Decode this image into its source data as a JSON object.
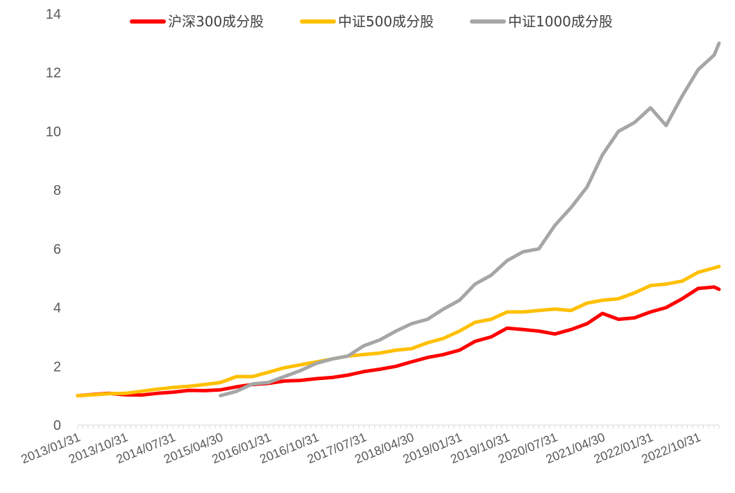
{
  "chart_data": {
    "type": "line",
    "xlabel": "",
    "ylabel": "",
    "ylim": [
      0,
      14
    ],
    "yticks": [
      "0",
      "2",
      "4",
      "6",
      "8",
      "10",
      "12",
      "14"
    ],
    "xtick_labels": [
      "2013/01/31",
      "2013/10/31",
      "2014/07/31",
      "2015/04/30",
      "2016/01/31",
      "2016/10/31",
      "2017/07/31",
      "2018/04/30",
      "2019/01/31",
      "2019/10/31",
      "2020/07/31",
      "2021/04/30",
      "2022/01/31",
      "2022/10/31"
    ],
    "x_start": "2013/01/31",
    "x_end": "2023/02/28",
    "grid": false,
    "legend_position": "top",
    "series": [
      {
        "name": "沪深300成分股",
        "color": "#ff0000",
        "points": [
          [
            "2013/01/31",
            1.0
          ],
          [
            "2013/04/30",
            1.04
          ],
          [
            "2013/07/31",
            1.08
          ],
          [
            "2013/10/31",
            1.03
          ],
          [
            "2014/01/31",
            1.02
          ],
          [
            "2014/04/30",
            1.08
          ],
          [
            "2014/07/31",
            1.12
          ],
          [
            "2014/10/31",
            1.18
          ],
          [
            "2015/01/31",
            1.17
          ],
          [
            "2015/04/30",
            1.2
          ],
          [
            "2015/07/31",
            1.3
          ],
          [
            "2015/10/31",
            1.38
          ],
          [
            "2016/01/31",
            1.42
          ],
          [
            "2016/04/30",
            1.5
          ],
          [
            "2016/07/31",
            1.52
          ],
          [
            "2016/10/31",
            1.58
          ],
          [
            "2017/01/31",
            1.62
          ],
          [
            "2017/04/30",
            1.7
          ],
          [
            "2017/07/31",
            1.82
          ],
          [
            "2017/10/31",
            1.9
          ],
          [
            "2018/01/31",
            2.0
          ],
          [
            "2018/04/30",
            2.15
          ],
          [
            "2018/07/31",
            2.3
          ],
          [
            "2018/10/31",
            2.4
          ],
          [
            "2019/01/31",
            2.55
          ],
          [
            "2019/04/30",
            2.85
          ],
          [
            "2019/07/31",
            3.0
          ],
          [
            "2019/10/31",
            3.3
          ],
          [
            "2020/01/31",
            3.25
          ],
          [
            "2020/04/30",
            3.2
          ],
          [
            "2020/07/31",
            3.1
          ],
          [
            "2020/10/31",
            3.25
          ],
          [
            "2021/01/31",
            3.45
          ],
          [
            "2021/04/30",
            3.8
          ],
          [
            "2021/07/31",
            3.6
          ],
          [
            "2021/10/31",
            3.65
          ],
          [
            "2022/01/31",
            3.85
          ],
          [
            "2022/04/30",
            4.0
          ],
          [
            "2022/07/31",
            4.3
          ],
          [
            "2022/10/31",
            4.65
          ],
          [
            "2023/01/31",
            4.7
          ],
          [
            "2023/02/28",
            4.62
          ]
        ]
      },
      {
        "name": "中证500成分股",
        "color": "#ffc000",
        "points": [
          [
            "2013/01/31",
            1.0
          ],
          [
            "2013/04/30",
            1.03
          ],
          [
            "2013/07/31",
            1.07
          ],
          [
            "2013/10/31",
            1.08
          ],
          [
            "2014/01/31",
            1.15
          ],
          [
            "2014/04/30",
            1.22
          ],
          [
            "2014/07/31",
            1.28
          ],
          [
            "2014/10/31",
            1.32
          ],
          [
            "2015/01/31",
            1.38
          ],
          [
            "2015/04/30",
            1.45
          ],
          [
            "2015/07/31",
            1.65
          ],
          [
            "2015/10/31",
            1.65
          ],
          [
            "2016/01/31",
            1.8
          ],
          [
            "2016/04/30",
            1.95
          ],
          [
            "2016/07/31",
            2.05
          ],
          [
            "2016/10/31",
            2.15
          ],
          [
            "2017/01/31",
            2.25
          ],
          [
            "2017/04/30",
            2.35
          ],
          [
            "2017/07/31",
            2.4
          ],
          [
            "2017/10/31",
            2.45
          ],
          [
            "2018/01/31",
            2.55
          ],
          [
            "2018/04/30",
            2.6
          ],
          [
            "2018/07/31",
            2.8
          ],
          [
            "2018/10/31",
            2.95
          ],
          [
            "2019/01/31",
            3.2
          ],
          [
            "2019/04/30",
            3.5
          ],
          [
            "2019/07/31",
            3.6
          ],
          [
            "2019/10/31",
            3.85
          ],
          [
            "2020/01/31",
            3.85
          ],
          [
            "2020/04/30",
            3.9
          ],
          [
            "2020/07/31",
            3.95
          ],
          [
            "2020/10/31",
            3.9
          ],
          [
            "2021/01/31",
            4.15
          ],
          [
            "2021/04/30",
            4.25
          ],
          [
            "2021/07/31",
            4.3
          ],
          [
            "2021/10/31",
            4.5
          ],
          [
            "2022/01/31",
            4.75
          ],
          [
            "2022/04/30",
            4.8
          ],
          [
            "2022/07/31",
            4.9
          ],
          [
            "2022/10/31",
            5.2
          ],
          [
            "2023/01/31",
            5.35
          ],
          [
            "2023/02/28",
            5.4
          ]
        ]
      },
      {
        "name": "中证1000成分股",
        "color": "#a6a6a6",
        "points": [
          [
            "2015/04/30",
            1.0
          ],
          [
            "2015/07/31",
            1.15
          ],
          [
            "2015/10/31",
            1.4
          ],
          [
            "2016/01/31",
            1.45
          ],
          [
            "2016/04/30",
            1.65
          ],
          [
            "2016/07/31",
            1.85
          ],
          [
            "2016/10/31",
            2.1
          ],
          [
            "2017/01/31",
            2.25
          ],
          [
            "2017/04/30",
            2.35
          ],
          [
            "2017/07/31",
            2.7
          ],
          [
            "2017/10/31",
            2.9
          ],
          [
            "2018/01/31",
            3.2
          ],
          [
            "2018/04/30",
            3.45
          ],
          [
            "2018/07/31",
            3.6
          ],
          [
            "2018/10/31",
            3.95
          ],
          [
            "2019/01/31",
            4.25
          ],
          [
            "2019/04/30",
            4.8
          ],
          [
            "2019/07/31",
            5.1
          ],
          [
            "2019/10/31",
            5.6
          ],
          [
            "2020/01/31",
            5.9
          ],
          [
            "2020/04/30",
            6.0
          ],
          [
            "2020/07/31",
            6.8
          ],
          [
            "2020/10/31",
            7.4
          ],
          [
            "2021/01/31",
            8.1
          ],
          [
            "2021/04/30",
            9.2
          ],
          [
            "2021/07/31",
            10.0
          ],
          [
            "2021/10/31",
            10.3
          ],
          [
            "2022/01/31",
            10.8
          ],
          [
            "2022/04/30",
            10.2
          ],
          [
            "2022/07/31",
            11.2
          ],
          [
            "2022/10/31",
            12.1
          ],
          [
            "2023/01/31",
            12.6
          ],
          [
            "2023/02/28",
            13.0
          ]
        ]
      }
    ]
  }
}
